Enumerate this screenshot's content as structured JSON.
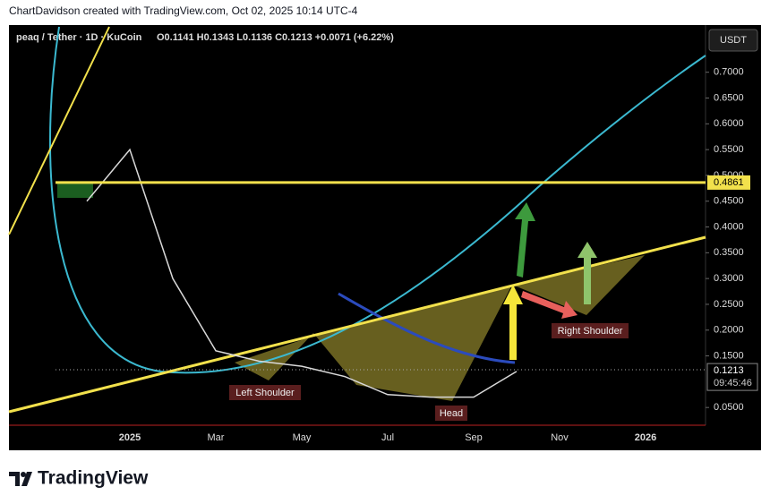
{
  "header": {
    "credit": "ChartDavidson created with TradingView.com, Oct 02, 2025 10:14 UTC-4",
    "symbol": "peaq / Tether · 1D · KuCoin",
    "ohlc": "O0.1141 H0.1343 L0.1136 C0.1213 +0.0071 (+6.22%)",
    "currency": "USDT"
  },
  "chart_data": {
    "type": "line",
    "categories": [
      null,
      null,
      "2025",
      null,
      "Mar",
      null,
      "May",
      null,
      "Jul",
      null,
      "Sep",
      null,
      "Nov",
      null,
      "2026"
    ],
    "series": [
      {
        "color": "#d9d9d9",
        "values": [
          null,
          0.45,
          0.55,
          0.3,
          0.16,
          0.14,
          0.13,
          0.11,
          0.075,
          0.07,
          0.07,
          0.12,
          null,
          null,
          null
        ]
      }
    ],
    "ylim": [
      0.0156,
      0.788
    ],
    "yticks": [
      {
        "value": 0.05,
        "label": "0.0500"
      },
      {
        "value": 0.15,
        "label": "0.1500"
      },
      {
        "value": 0.2,
        "label": "0.2000"
      },
      {
        "value": 0.25,
        "label": "0.2500"
      },
      {
        "value": 0.3,
        "label": "0.3000"
      },
      {
        "value": 0.35,
        "label": "0.3500"
      },
      {
        "value": 0.4,
        "label": "0.4000"
      },
      {
        "value": 0.45,
        "label": "0.4500"
      },
      {
        "value": 0.5,
        "label": "0.5000"
      },
      {
        "value": 0.55,
        "label": "0.5500"
      },
      {
        "value": 0.6,
        "label": "0.6000"
      },
      {
        "value": 0.65,
        "label": "0.6500"
      },
      {
        "value": 0.7,
        "label": "0.7000"
      }
    ],
    "level": {
      "value": 0.4861,
      "label": "0.4861"
    },
    "last_price": {
      "value": 0.1213,
      "label": "0.1213",
      "countdown": "09:45:46"
    },
    "annotations": [
      "Left Shoulder",
      "Head",
      "Right Shoulder"
    ]
  },
  "footer": {
    "logo": "TradingView"
  }
}
